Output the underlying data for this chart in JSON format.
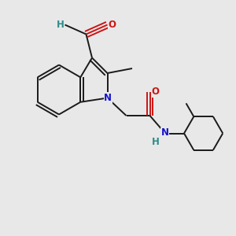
{
  "bg_color": "#e8e8e8",
  "bond_color": "#1a1a1a",
  "N_color": "#1414cc",
  "O_color": "#cc1414",
  "H_color": "#2e8b8b",
  "lw": 1.4,
  "dbo": 0.13,
  "xlim": [
    0,
    10
  ],
  "ylim": [
    0,
    10
  ]
}
